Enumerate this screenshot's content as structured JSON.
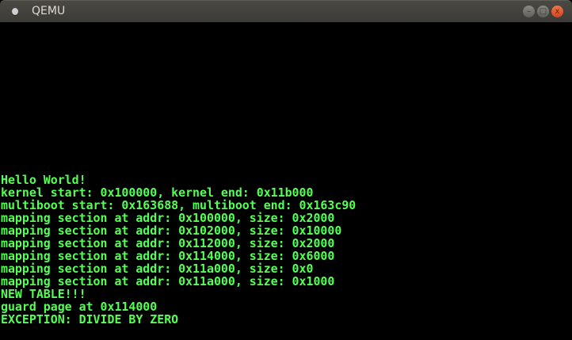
{
  "window": {
    "title": "QEMU",
    "minimize_icon": "minimize-icon",
    "maximize_icon": "maximize-icon",
    "close_icon": "close-icon"
  },
  "console": {
    "text_color": "#55ff55",
    "lines": [
      "Hello World!",
      "kernel start: 0x100000, kernel end: 0x11b000",
      "multiboot start: 0x163688, multiboot end: 0x163c90",
      "mapping section at addr: 0x100000, size: 0x2000",
      "mapping section at addr: 0x102000, size: 0x10000",
      "mapping section at addr: 0x112000, size: 0x2000",
      "mapping section at addr: 0x114000, size: 0x6000",
      "mapping section at addr: 0x11a000, size: 0x0",
      "mapping section at addr: 0x11a000, size: 0x1000",
      "NEW TABLE!!!",
      "guard page at 0x114000",
      "EXCEPTION: DIVIDE BY ZERO"
    ]
  }
}
